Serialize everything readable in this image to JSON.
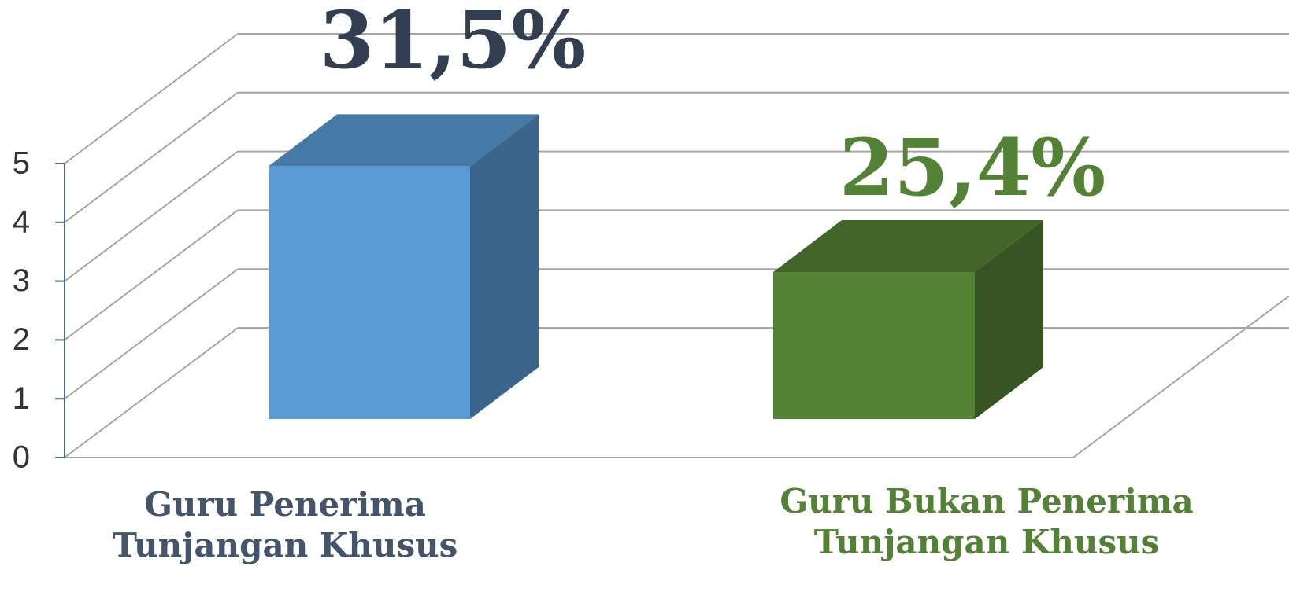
{
  "chart_data": {
    "type": "bar3d",
    "categories": [
      "Guru Penerima Tunjangan Khusus",
      "Guru Bukan Penerima Tunjangan Khusus"
    ],
    "values": [
      4.3,
      2.5
    ],
    "colors": [
      "#5b9bd5",
      "#548235"
    ],
    "label_colors": [
      "#44546a",
      "#538135"
    ],
    "annotations": [
      "31,5%",
      "25,4%"
    ],
    "annotation_colors": [
      "#333f50",
      "#538135"
    ],
    "ylim": [
      0,
      5
    ],
    "yticks": [
      0,
      1,
      2,
      3,
      4,
      5
    ],
    "grid": true
  }
}
